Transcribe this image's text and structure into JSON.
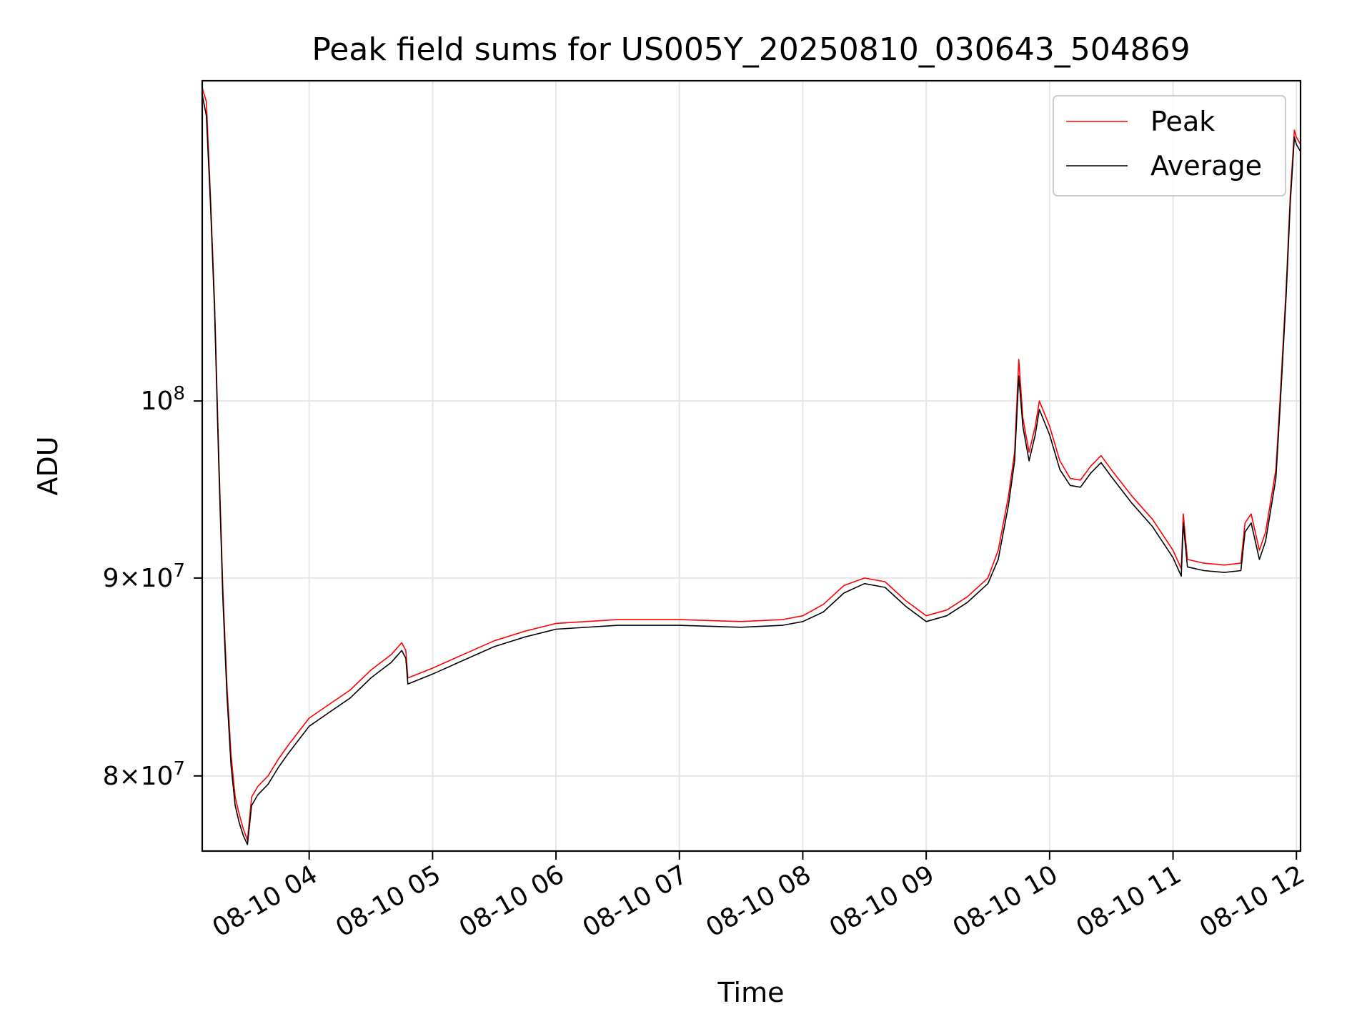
{
  "chart_data": {
    "type": "line",
    "title": "Peak field sums for US005Y_20250810_030643_504869",
    "xlabel": "Time",
    "ylabel": "ADU",
    "y_scale": "log",
    "grid": true,
    "legend_position": "top-right",
    "xlim": [
      "2025-08-10 03:08",
      "2025-08-10 12:02"
    ],
    "ylim": [
      76500000,
      121000000
    ],
    "x_ticks": [
      {
        "value": "2025-08-10 04:00",
        "label": "08-10 04"
      },
      {
        "value": "2025-08-10 05:00",
        "label": "08-10 05"
      },
      {
        "value": "2025-08-10 06:00",
        "label": "08-10 06"
      },
      {
        "value": "2025-08-10 07:00",
        "label": "08-10 07"
      },
      {
        "value": "2025-08-10 08:00",
        "label": "08-10 08"
      },
      {
        "value": "2025-08-10 09:00",
        "label": "08-10 09"
      },
      {
        "value": "2025-08-10 10:00",
        "label": "08-10 10"
      },
      {
        "value": "2025-08-10 11:00",
        "label": "08-10 11"
      },
      {
        "value": "2025-08-10 12:00",
        "label": "08-10 12"
      }
    ],
    "y_ticks": [
      {
        "value": 80000000,
        "mantissa": "8",
        "exponent": "7"
      },
      {
        "value": 90000000,
        "mantissa": "9",
        "exponent": "7"
      },
      {
        "value": 100000000,
        "mantissa": "",
        "exponent": "8"
      }
    ],
    "series": [
      {
        "name": "Peak",
        "color": "#ff0000",
        "points": [
          [
            "2025-08-10 03:08",
            120500000
          ],
          [
            "2025-08-10 03:10",
            119500000
          ],
          [
            "2025-08-10 03:12",
            113000000
          ],
          [
            "2025-08-10 03:14",
            106000000
          ],
          [
            "2025-08-10 03:16",
            97000000
          ],
          [
            "2025-08-10 03:18",
            89500000
          ],
          [
            "2025-08-10 03:20",
            84500000
          ],
          [
            "2025-08-10 03:22",
            81000000
          ],
          [
            "2025-08-10 03:24",
            79000000
          ],
          [
            "2025-08-10 03:26",
            78200000
          ],
          [
            "2025-08-10 03:28",
            77500000
          ],
          [
            "2025-08-10 03:30",
            77000000
          ],
          [
            "2025-08-10 03:32",
            79000000
          ],
          [
            "2025-08-10 03:35",
            79500000
          ],
          [
            "2025-08-10 03:40",
            80000000
          ],
          [
            "2025-08-10 03:45",
            80800000
          ],
          [
            "2025-08-10 03:50",
            81500000
          ],
          [
            "2025-08-10 04:00",
            82800000
          ],
          [
            "2025-08-10 04:10",
            83500000
          ],
          [
            "2025-08-10 04:20",
            84200000
          ],
          [
            "2025-08-10 04:30",
            85200000
          ],
          [
            "2025-08-10 04:40",
            86000000
          ],
          [
            "2025-08-10 04:45",
            86600000
          ],
          [
            "2025-08-10 04:47",
            86200000
          ],
          [
            "2025-08-10 04:48",
            84800000
          ],
          [
            "2025-08-10 05:00",
            85300000
          ],
          [
            "2025-08-10 05:15",
            86000000
          ],
          [
            "2025-08-10 05:30",
            86700000
          ],
          [
            "2025-08-10 05:45",
            87200000
          ],
          [
            "2025-08-10 06:00",
            87600000
          ],
          [
            "2025-08-10 06:30",
            87800000
          ],
          [
            "2025-08-10 07:00",
            87800000
          ],
          [
            "2025-08-10 07:30",
            87700000
          ],
          [
            "2025-08-10 07:50",
            87800000
          ],
          [
            "2025-08-10 08:00",
            88000000
          ],
          [
            "2025-08-10 08:10",
            88600000
          ],
          [
            "2025-08-10 08:20",
            89600000
          ],
          [
            "2025-08-10 08:30",
            90000000
          ],
          [
            "2025-08-10 08:40",
            89800000
          ],
          [
            "2025-08-10 08:50",
            88800000
          ],
          [
            "2025-08-10 09:00",
            88000000
          ],
          [
            "2025-08-10 09:10",
            88300000
          ],
          [
            "2025-08-10 09:20",
            89000000
          ],
          [
            "2025-08-10 09:30",
            90000000
          ],
          [
            "2025-08-10 09:35",
            91500000
          ],
          [
            "2025-08-10 09:40",
            94500000
          ],
          [
            "2025-08-10 09:43",
            97000000
          ],
          [
            "2025-08-10 09:45",
            102500000
          ],
          [
            "2025-08-10 09:47",
            99000000
          ],
          [
            "2025-08-10 09:50",
            97000000
          ],
          [
            "2025-08-10 09:53",
            98500000
          ],
          [
            "2025-08-10 09:55",
            100000000
          ],
          [
            "2025-08-10 10:00",
            98500000
          ],
          [
            "2025-08-10 10:05",
            96500000
          ],
          [
            "2025-08-10 10:10",
            95500000
          ],
          [
            "2025-08-10 10:15",
            95400000
          ],
          [
            "2025-08-10 10:20",
            96200000
          ],
          [
            "2025-08-10 10:25",
            96800000
          ],
          [
            "2025-08-10 10:30",
            96000000
          ],
          [
            "2025-08-10 10:40",
            94500000
          ],
          [
            "2025-08-10 10:50",
            93200000
          ],
          [
            "2025-08-10 11:00",
            91500000
          ],
          [
            "2025-08-10 11:04",
            90500000
          ],
          [
            "2025-08-10 11:05",
            93500000
          ],
          [
            "2025-08-10 11:07",
            91000000
          ],
          [
            "2025-08-10 11:15",
            90800000
          ],
          [
            "2025-08-10 11:25",
            90700000
          ],
          [
            "2025-08-10 11:33",
            90800000
          ],
          [
            "2025-08-10 11:35",
            93000000
          ],
          [
            "2025-08-10 11:38",
            93500000
          ],
          [
            "2025-08-10 11:42",
            91500000
          ],
          [
            "2025-08-10 11:45",
            92500000
          ],
          [
            "2025-08-10 11:50",
            96000000
          ],
          [
            "2025-08-10 11:52",
            100000000
          ],
          [
            "2025-08-10 11:55",
            107000000
          ],
          [
            "2025-08-10 11:57",
            113000000
          ],
          [
            "2025-08-10 11:59",
            117500000
          ],
          [
            "2025-08-10 12:00",
            117000000
          ],
          [
            "2025-08-10 12:02",
            116500000
          ]
        ]
      },
      {
        "name": "Average",
        "color": "#000000",
        "points": [
          [
            "2025-08-10 03:08",
            120000000
          ],
          [
            "2025-08-10 03:10",
            118500000
          ],
          [
            "2025-08-10 03:12",
            112500000
          ],
          [
            "2025-08-10 03:14",
            105500000
          ],
          [
            "2025-08-10 03:16",
            96500000
          ],
          [
            "2025-08-10 03:18",
            89000000
          ],
          [
            "2025-08-10 03:20",
            84000000
          ],
          [
            "2025-08-10 03:22",
            80500000
          ],
          [
            "2025-08-10 03:24",
            78600000
          ],
          [
            "2025-08-10 03:26",
            77800000
          ],
          [
            "2025-08-10 03:28",
            77200000
          ],
          [
            "2025-08-10 03:30",
            76800000
          ],
          [
            "2025-08-10 03:32",
            78600000
          ],
          [
            "2025-08-10 03:35",
            79100000
          ],
          [
            "2025-08-10 03:40",
            79600000
          ],
          [
            "2025-08-10 03:45",
            80400000
          ],
          [
            "2025-08-10 03:50",
            81100000
          ],
          [
            "2025-08-10 04:00",
            82400000
          ],
          [
            "2025-08-10 04:10",
            83100000
          ],
          [
            "2025-08-10 04:20",
            83800000
          ],
          [
            "2025-08-10 04:30",
            84800000
          ],
          [
            "2025-08-10 04:40",
            85600000
          ],
          [
            "2025-08-10 04:45",
            86200000
          ],
          [
            "2025-08-10 04:47",
            85800000
          ],
          [
            "2025-08-10 04:48",
            84500000
          ],
          [
            "2025-08-10 05:00",
            85000000
          ],
          [
            "2025-08-10 05:15",
            85700000
          ],
          [
            "2025-08-10 05:30",
            86400000
          ],
          [
            "2025-08-10 05:45",
            86900000
          ],
          [
            "2025-08-10 06:00",
            87300000
          ],
          [
            "2025-08-10 06:30",
            87500000
          ],
          [
            "2025-08-10 07:00",
            87500000
          ],
          [
            "2025-08-10 07:30",
            87400000
          ],
          [
            "2025-08-10 07:50",
            87500000
          ],
          [
            "2025-08-10 08:00",
            87700000
          ],
          [
            "2025-08-10 08:10",
            88200000
          ],
          [
            "2025-08-10 08:20",
            89200000
          ],
          [
            "2025-08-10 08:30",
            89700000
          ],
          [
            "2025-08-10 08:40",
            89500000
          ],
          [
            "2025-08-10 08:50",
            88500000
          ],
          [
            "2025-08-10 09:00",
            87700000
          ],
          [
            "2025-08-10 09:10",
            88000000
          ],
          [
            "2025-08-10 09:20",
            88700000
          ],
          [
            "2025-08-10 09:30",
            89700000
          ],
          [
            "2025-08-10 09:35",
            91000000
          ],
          [
            "2025-08-10 09:40",
            94000000
          ],
          [
            "2025-08-10 09:43",
            96500000
          ],
          [
            "2025-08-10 09:45",
            101500000
          ],
          [
            "2025-08-10 09:47",
            98500000
          ],
          [
            "2025-08-10 09:50",
            96500000
          ],
          [
            "2025-08-10 09:53",
            98000000
          ],
          [
            "2025-08-10 09:55",
            99500000
          ],
          [
            "2025-08-10 10:00",
            98000000
          ],
          [
            "2025-08-10 10:05",
            96000000
          ],
          [
            "2025-08-10 10:10",
            95100000
          ],
          [
            "2025-08-10 10:15",
            95000000
          ],
          [
            "2025-08-10 10:20",
            95800000
          ],
          [
            "2025-08-10 10:25",
            96400000
          ],
          [
            "2025-08-10 10:30",
            95600000
          ],
          [
            "2025-08-10 10:40",
            94100000
          ],
          [
            "2025-08-10 10:50",
            92800000
          ],
          [
            "2025-08-10 11:00",
            91100000
          ],
          [
            "2025-08-10 11:04",
            90100000
          ],
          [
            "2025-08-10 11:05",
            93000000
          ],
          [
            "2025-08-10 11:07",
            90600000
          ],
          [
            "2025-08-10 11:15",
            90400000
          ],
          [
            "2025-08-10 11:25",
            90300000
          ],
          [
            "2025-08-10 11:33",
            90400000
          ],
          [
            "2025-08-10 11:35",
            92500000
          ],
          [
            "2025-08-10 11:38",
            93000000
          ],
          [
            "2025-08-10 11:42",
            91000000
          ],
          [
            "2025-08-10 11:45",
            92000000
          ],
          [
            "2025-08-10 11:50",
            95500000
          ],
          [
            "2025-08-10 11:52",
            99500000
          ],
          [
            "2025-08-10 11:55",
            106500000
          ],
          [
            "2025-08-10 11:57",
            112500000
          ],
          [
            "2025-08-10 11:59",
            117000000
          ],
          [
            "2025-08-10 12:00",
            116500000
          ],
          [
            "2025-08-10 12:02",
            116000000
          ]
        ]
      }
    ]
  }
}
